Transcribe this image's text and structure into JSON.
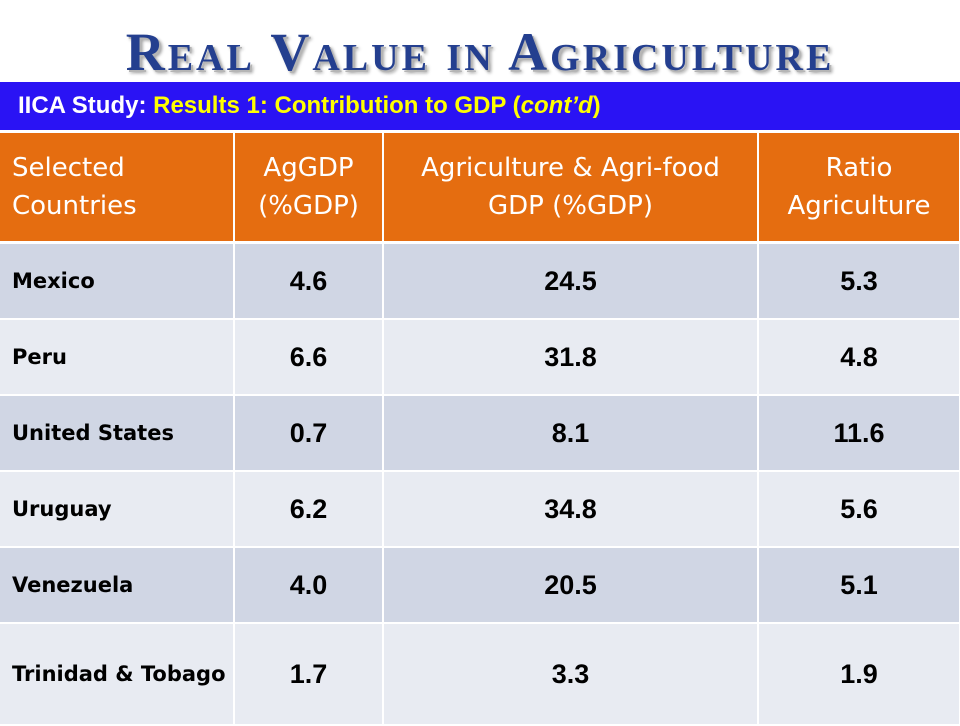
{
  "slide": {
    "title": "Real Value in Agriculture",
    "subtitle_lead": "IICA Study: ",
    "subtitle_main": "Results 1: Contribution to GDP (",
    "subtitle_italic": "cont’d",
    "subtitle_close": ")"
  },
  "table": {
    "headers": [
      "Selected Countries",
      "AgGDP (%GDP)",
      "Agriculture & Agri-food GDP (%GDP)",
      "Ratio Agriculture"
    ],
    "rows": [
      {
        "country": "Mexico",
        "aggdp": "4.6",
        "agrifood": "24.5",
        "ratio": "5.3"
      },
      {
        "country": "Peru",
        "aggdp": "6.6",
        "agrifood": "31.8",
        "ratio": "4.8"
      },
      {
        "country": "United States",
        "aggdp": "0.7",
        "agrifood": "8.1",
        "ratio": "11.6"
      },
      {
        "country": "Uruguay",
        "aggdp": "6.2",
        "agrifood": "34.8",
        "ratio": "5.6"
      },
      {
        "country": "Venezuela",
        "aggdp": "4.0",
        "agrifood": "20.5",
        "ratio": "5.1"
      },
      {
        "country": "Trinidad & Tobago",
        "aggdp": "1.7",
        "agrifood": "3.3",
        "ratio": "1.9"
      }
    ]
  },
  "colors": {
    "title": "#243f8f",
    "subtitle_bar": "#2a13f4",
    "subtitle_text": "#ffff00",
    "header_bg": "#e56d10",
    "row_dark": "#d0d6e4",
    "row_light": "#e8ebf2"
  }
}
